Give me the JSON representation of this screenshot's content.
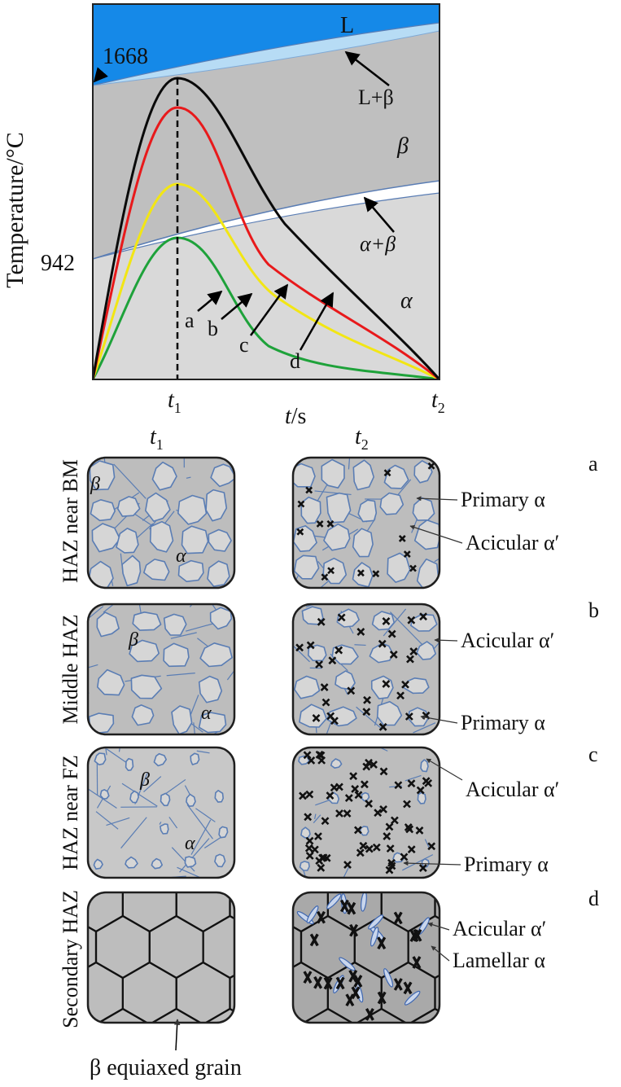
{
  "phase_diagram": {
    "ylabel": "Temperature/°C",
    "xlabel_var": "t",
    "xlabel_unit": "/s",
    "y_ticks": [
      "1668",
      "942"
    ],
    "x_ticks": [
      {
        "base": "t",
        "sub": "1"
      },
      {
        "base": "t",
        "sub": "2"
      }
    ],
    "regions": {
      "liquid": "L",
      "l_beta": "L+β",
      "beta": "β",
      "alpha_beta": "α+β",
      "alpha": "α"
    },
    "curves": [
      {
        "label": "a",
        "color": "#1ea23a"
      },
      {
        "label": "b",
        "color": "#f2e614"
      },
      {
        "label": "c",
        "color": "#e8191b"
      },
      {
        "label": "d",
        "color": "#0a0a0a"
      }
    ],
    "colors": {
      "liquid": "#1589e8",
      "l_beta": "#b7dcf5",
      "beta": "#bfbfbf",
      "alpha_beta": "#ffffff",
      "alpha": "#d9d9d9",
      "boundary": "#5a7db4"
    }
  },
  "micro": {
    "col_headers": [
      {
        "base": "t",
        "sub": "1"
      },
      {
        "base": "t",
        "sub": "2"
      }
    ],
    "rows": [
      {
        "letter": "a",
        "zone": "HAZ near BM",
        "t1_labels": [
          "β",
          "α"
        ],
        "t2_labels": [
          "Primary α",
          "Acicular α′"
        ]
      },
      {
        "letter": "b",
        "zone": "Middle HAZ",
        "t1_labels": [
          "β",
          "α"
        ],
        "t2_labels": [
          "Acicular α′",
          "Primary α"
        ]
      },
      {
        "letter": "c",
        "zone": "HAZ near FZ",
        "t1_labels": [
          "β",
          "α"
        ],
        "t2_labels": [
          "Acicular α′",
          "Primary α"
        ]
      },
      {
        "letter": "d",
        "zone": "Secondary HAZ",
        "t1_labels": [],
        "t2_labels": [
          "Acicular α′",
          "Lamellar α"
        ]
      }
    ],
    "bottom_label": "β equiaxed grain"
  }
}
